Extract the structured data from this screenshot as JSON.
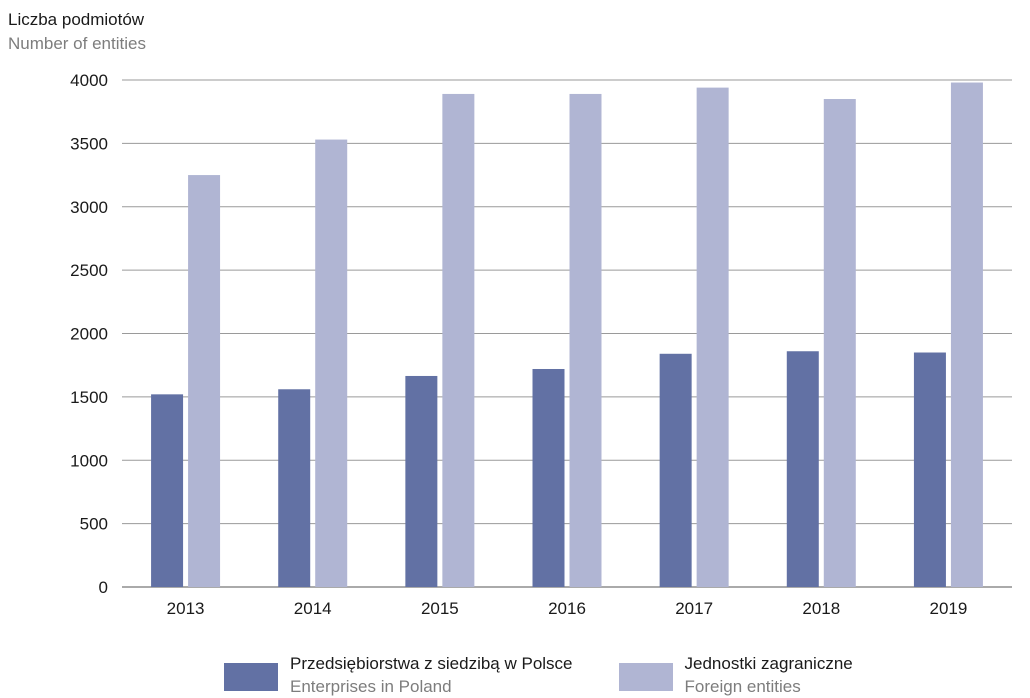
{
  "chart_data": {
    "type": "bar",
    "ylabel": {
      "pl": "Liczba podmiotów",
      "en": "Number of entities"
    },
    "categories": [
      "2013",
      "2014",
      "2015",
      "2016",
      "2017",
      "2018",
      "2019"
    ],
    "ylim": [
      0,
      4000
    ],
    "yticks": [
      0,
      500,
      1000,
      1500,
      2000,
      2500,
      3000,
      3500,
      4000
    ],
    "grid": "horizontal",
    "legend_position": "bottom",
    "series": [
      {
        "name": "Przedsiębiorstwa z siedzibą w Polsce",
        "name_en": "Enterprises in Poland",
        "color": "#6271a4",
        "values": [
          1520,
          1560,
          1665,
          1720,
          1840,
          1860,
          1850
        ]
      },
      {
        "name": "Jednostki zagraniczne",
        "name_en": "Foreign entities",
        "color": "#b0b5d3",
        "values": [
          3250,
          3530,
          3890,
          3890,
          3940,
          3850,
          3980
        ]
      }
    ]
  }
}
